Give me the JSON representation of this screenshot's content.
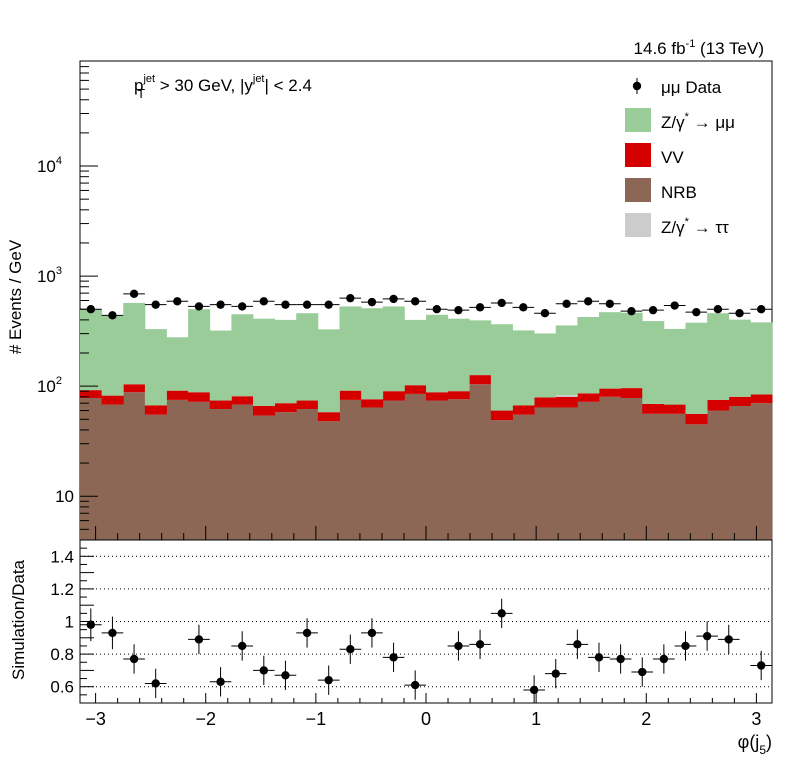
{
  "header": {
    "lumi_value": "14.6 fb",
    "lumi_exp": "-1",
    "energy": " (13 TeV)"
  },
  "cut_label": {
    "p": "p",
    "p_sup": "jet",
    "p_sub": "T",
    "p_rest": " > 30 GeV,  |y",
    "y_sup": "jet",
    "y_rest": "| < 2.4"
  },
  "chart_data": [
    {
      "type": "bar",
      "stacked": true,
      "ylabel": "# Events / GeV",
      "yscale": "log",
      "ylim": [
        4,
        90000
      ],
      "yticks": [
        {
          "value": 10,
          "label": "10",
          "exp": ""
        },
        {
          "value": 100,
          "label": "10",
          "exp": "2"
        },
        {
          "value": 1000,
          "label": "10",
          "exp": "3"
        },
        {
          "value": 10000,
          "label": "10",
          "exp": "4"
        }
      ],
      "xlim": [
        -3.1416,
        3.1416
      ],
      "bin_edges": [
        -3.1416,
        -2.9452,
        -2.7489,
        -2.5525,
        -2.3562,
        -2.1598,
        -1.9635,
        -1.7671,
        -1.5708,
        -1.3744,
        -1.1781,
        -0.9817,
        -0.7854,
        -0.589,
        -0.3927,
        -0.1963,
        0.0,
        0.1963,
        0.3927,
        0.589,
        0.7854,
        0.9817,
        1.1781,
        1.3744,
        1.5708,
        1.7671,
        1.9635,
        2.1598,
        2.3562,
        2.5525,
        2.7489,
        2.9452,
        3.1416
      ],
      "series": [
        {
          "name": "NRB",
          "color": "#8c6756",
          "values": [
            78,
            68,
            88,
            55,
            75,
            72,
            62,
            68,
            54,
            58,
            62,
            48,
            75,
            64,
            74,
            85,
            74,
            76,
            104,
            49,
            55,
            64,
            64,
            72,
            80,
            78,
            56,
            56,
            45,
            60,
            66,
            70
          ]
        },
        {
          "name": "VV",
          "color": "#d40000",
          "values": [
            14,
            14,
            16,
            12,
            16,
            16,
            12,
            13,
            12,
            12,
            12,
            10,
            16,
            12,
            16,
            17,
            14,
            14,
            22,
            11,
            12,
            15,
            16,
            14,
            15,
            18,
            13,
            12,
            11,
            15,
            14,
            14
          ]
        },
        {
          "name": "Z/γ* → ττ",
          "color": "#cccccc",
          "values": [
            0,
            0,
            0,
            0,
            0,
            0,
            0,
            0,
            0,
            0,
            0,
            0,
            0,
            0,
            0,
            0,
            0,
            0,
            0,
            0,
            0,
            0,
            3,
            0,
            0,
            0,
            0,
            0,
            0,
            0,
            0,
            0
          ]
        },
        {
          "name": "Z/γ* → μμ",
          "color": "#99cc99",
          "values": [
            408,
            352,
            466,
            263,
            187,
            412,
            246,
            369,
            344,
            330,
            386,
            270,
            439,
            434,
            440,
            298,
            357,
            320,
            270,
            305,
            254,
            222,
            273,
            339,
            375,
            368,
            321,
            263,
            321,
            385,
            322,
            296
          ]
        }
      ],
      "data_series": {
        "name": "μμ Data",
        "values": [
          500,
          440,
          690,
          550,
          590,
          530,
          550,
          530,
          590,
          550,
          550,
          550,
          630,
          580,
          620,
          590,
          500,
          490,
          520,
          570,
          520,
          460,
          560,
          590,
          560,
          480,
          490,
          540,
          470,
          500,
          460,
          500
        ]
      },
      "legend": {
        "placement": "top-right",
        "entries": [
          {
            "label": "μμ Data",
            "kind": "marker"
          },
          {
            "label": "Z/γ",
            "sup": "*",
            "rest": " → μμ",
            "kind": "box",
            "color": "#99cc99"
          },
          {
            "label": "VV",
            "sup": "",
            "rest": "",
            "kind": "box",
            "color": "#d40000"
          },
          {
            "label": "NRB",
            "sup": "",
            "rest": "",
            "kind": "box",
            "color": "#8c6756"
          },
          {
            "label": "Z/γ",
            "sup": "*",
            "rest": " → ττ",
            "kind": "box",
            "color": "#cccccc"
          }
        ]
      }
    },
    {
      "type": "scatter",
      "ylabel": "Simulation/Data",
      "ylim": [
        0.5,
        1.5
      ],
      "yticks": [
        {
          "value": 0.6,
          "label": "0.6"
        },
        {
          "value": 0.8,
          "label": "0.8"
        },
        {
          "value": 1.0,
          "label": "1"
        },
        {
          "value": 1.2,
          "label": "1.2"
        },
        {
          "value": 1.4,
          "label": "1.4"
        }
      ],
      "grid": "horizontal dotted",
      "xlabel": "φ(j",
      "xlabel_sub": "5",
      "xlabel_end": ")",
      "xticks": [
        {
          "value": -3,
          "label": "−3"
        },
        {
          "value": -2,
          "label": "−2"
        },
        {
          "value": -1,
          "label": "−1"
        },
        {
          "value": 0,
          "label": "0"
        },
        {
          "value": 1,
          "label": "1"
        },
        {
          "value": 2,
          "label": "2"
        },
        {
          "value": 3,
          "label": "3"
        }
      ],
      "values": [
        0.98,
        0.93,
        0.77,
        0.62,
        0.89,
        0.63,
        0.85,
        0.7,
        0.67,
        0.93,
        0.64,
        0.83,
        0.93,
        0.78,
        0.61,
        0.85,
        0.86,
        1.05,
        0.58,
        0.68,
        0.86,
        0.78,
        0.77,
        0.69,
        0.77,
        0.85,
        0.91,
        0.89,
        0.73
      ],
      "x": [
        -3.0434,
        -2.8471,
        -2.6507,
        -2.4544,
        -2.0617,
        -1.8653,
        -1.669,
        -1.4726,
        -1.2763,
        -1.0799,
        -0.8836,
        -0.6872,
        -0.4909,
        -0.2945,
        -0.0982,
        0.2945,
        0.4909,
        0.6872,
        0.9817,
        1.1781,
        1.3744,
        1.5708,
        1.7671,
        1.9635,
        2.1598,
        2.3562,
        2.5525,
        2.7489,
        3.0434
      ],
      "errors": [
        0.1,
        0.1,
        0.09,
        0.09,
        0.09,
        0.09,
        0.09,
        0.09,
        0.09,
        0.09,
        0.09,
        0.09,
        0.09,
        0.09,
        0.09,
        0.09,
        0.09,
        0.09,
        0.09,
        0.09,
        0.09,
        0.09,
        0.09,
        0.09,
        0.09,
        0.09,
        0.09,
        0.09,
        0.09
      ]
    }
  ]
}
